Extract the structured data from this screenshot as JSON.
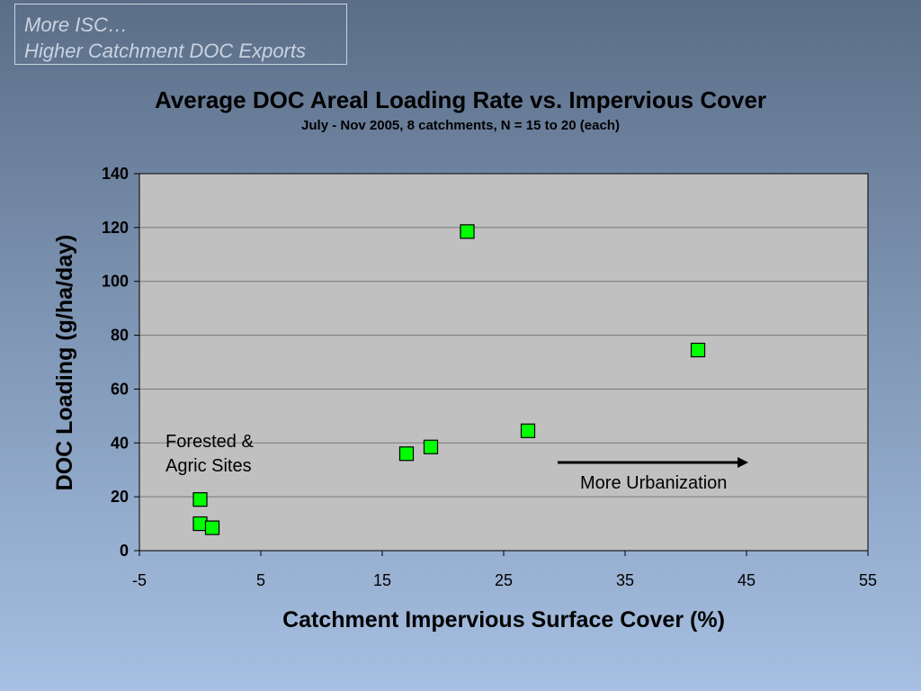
{
  "slide": {
    "title_lines": [
      "More ISC…",
      "Higher Catchment DOC Exports"
    ]
  },
  "colors": {
    "plot_area": "#c0c0c0",
    "marker": "#00ff00",
    "gridline": "#777777"
  },
  "chart_data": {
    "type": "scatter",
    "title": "Average DOC Areal Loading Rate vs. Impervious Cover",
    "subtitle": "July - Nov 2005, 8 catchments, N = 15 to 20 (each)",
    "xlabel": "Catchment Impervious Surface Cover (%)",
    "ylabel": "DOC Loading (g/ha/day)",
    "xlim": [
      -5,
      55
    ],
    "ylim": [
      0,
      140
    ],
    "xticks": [
      -5,
      5,
      15,
      25,
      35,
      45,
      55
    ],
    "yticks": [
      0,
      20,
      40,
      60,
      80,
      100,
      120,
      140
    ],
    "grid": "horizontal",
    "marker": "square",
    "points": [
      {
        "x": 0,
        "y": 19
      },
      {
        "x": 0,
        "y": 10
      },
      {
        "x": 1,
        "y": 8.5
      },
      {
        "x": 17,
        "y": 36
      },
      {
        "x": 19,
        "y": 38.5
      },
      {
        "x": 22,
        "y": 118.5
      },
      {
        "x": 27,
        "y": 44.5
      },
      {
        "x": 41,
        "y": 74.5
      }
    ],
    "annotations": {
      "forested_lines": [
        "Forested &",
        "Agric Sites"
      ],
      "urbanization": "More Urbanization"
    }
  }
}
